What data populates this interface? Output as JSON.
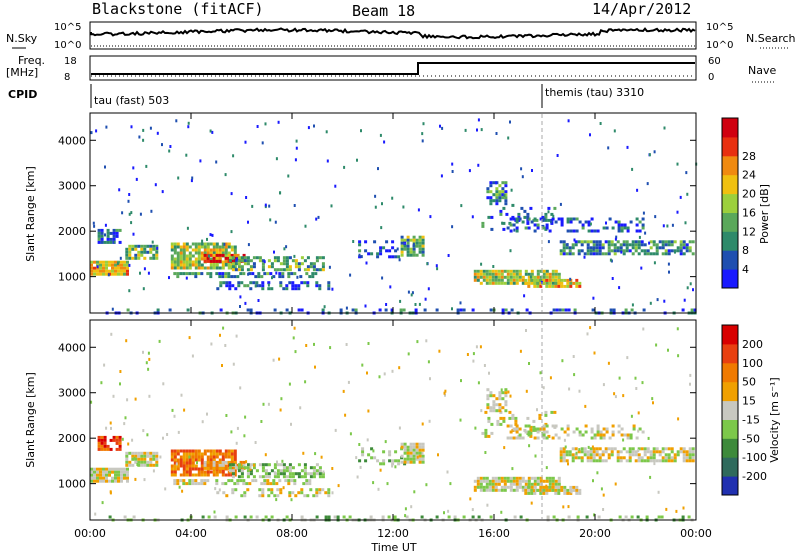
{
  "header": {
    "station": "Blackstone (fitACF)",
    "beam": "Beam 18",
    "date": "14/Apr/2012"
  },
  "noise_panel": {
    "left_label": "N.Sky",
    "right_label": "N.Search",
    "ticks_left": [
      "10^5",
      "10^0"
    ],
    "ticks_right": [
      "10^5",
      "10^0"
    ]
  },
  "freq_panel": {
    "left_label_1": "Freq.",
    "left_label_2": "[MHz]",
    "right_label": "Nave",
    "ticks_left": [
      "18",
      "8"
    ],
    "ticks_right": [
      "60",
      "0"
    ]
  },
  "cpid_panel": {
    "label": "CPID",
    "segments": [
      {
        "text": "tau (fast) 503",
        "start_hour": 0
      },
      {
        "text": "themis (tau) 3310",
        "start_hour": 18
      }
    ]
  },
  "chart_data": [
    {
      "type": "heatmap",
      "name": "power",
      "ylabel": "Slant Range [km]",
      "yticks": [
        1000,
        2000,
        3000,
        4000
      ],
      "ylim": [
        200,
        4600
      ],
      "xlim": [
        0,
        24
      ],
      "colorbar": {
        "label": "Power [dB]",
        "ticks": [
          "4",
          "8",
          "12",
          "16",
          "20",
          "24",
          "28"
        ],
        "colors": [
          "#1a1aff",
          "#1f4fb0",
          "#2e8a6a",
          "#5aa85a",
          "#9ccf3c",
          "#f0c010",
          "#f08a10",
          "#e83010",
          "#d00010"
        ]
      }
    },
    {
      "type": "heatmap",
      "name": "velocity",
      "ylabel": "Slant Range [km]",
      "yticks": [
        1000,
        2000,
        3000,
        4000
      ],
      "ylim": [
        200,
        4600
      ],
      "xlim": [
        0,
        24
      ],
      "colorbar": {
        "label": "Velocity [m s⁻¹]",
        "ticks": [
          "200",
          "100",
          "50",
          "15",
          "-15",
          "-50",
          "-100",
          "-200"
        ],
        "colors": [
          "#2030b0",
          "#2f6a5c",
          "#3d8a3a",
          "#7cc84a",
          "#c8c8c0",
          "#f0a000",
          "#f07a00",
          "#e84010",
          "#d80000"
        ]
      }
    }
  ],
  "x_axis": {
    "label": "Time UT",
    "ticks": [
      "00:00",
      "04:00",
      "08:00",
      "12:00",
      "16:00",
      "20:00",
      "00:00"
    ]
  }
}
